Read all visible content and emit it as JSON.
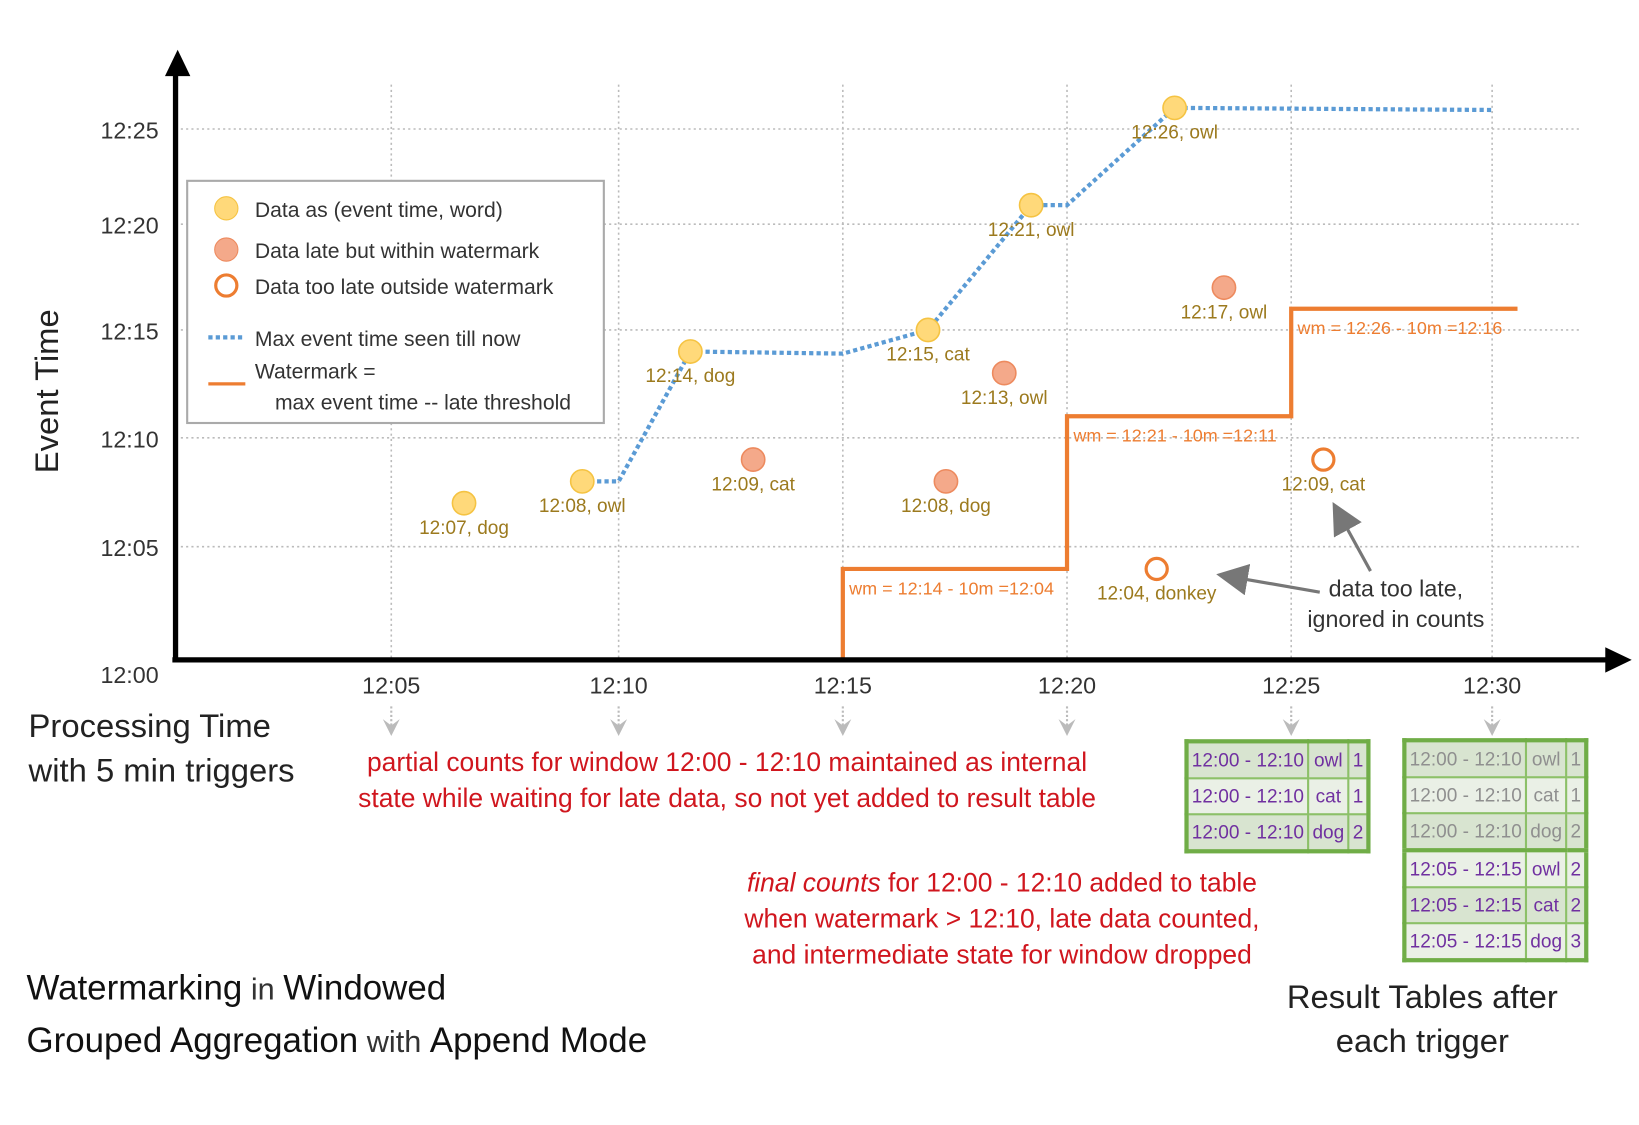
{
  "title": {
    "parts": [
      {
        "text": "Watermarking",
        "strong": true
      },
      {
        "text": " in ",
        "strong": false
      },
      {
        "text": "Windowed",
        "strong": true
      },
      {
        "text": "Grouped Aggregation",
        "strong": true
      },
      {
        "text": " with ",
        "strong": false
      },
      {
        "text": "Append Mode",
        "strong": true
      }
    ]
  },
  "axes": {
    "y_label": "Event Time",
    "x_label_line1": "Processing Time",
    "x_label_line2": "with 5 min triggers",
    "y_ticks": [
      "12:00",
      "12:05",
      "12:10",
      "12:15",
      "12:20",
      "12:25"
    ],
    "x_ticks": [
      "12:05",
      "12:10",
      "12:15",
      "12:20",
      "12:25",
      "12:30"
    ]
  },
  "legend": {
    "on_time": "Data as (event time, word)",
    "late_within": "Data late but within watermark",
    "too_late": "Data too late outside watermark",
    "max_event": "Max event time seen till now",
    "watermark_line1": "Watermark =",
    "watermark_line2": "max event time -- late threshold"
  },
  "colors": {
    "on_time": "#ffd97a",
    "late_within": "#f4a98a",
    "too_late": "#ed7d31",
    "max_event": "#5b9bd5",
    "watermark": "#ed7d31",
    "label": "#9c7a1e",
    "note": "#d0161e",
    "table_border": "#70ad47",
    "table_text": "#7030a0"
  },
  "chart_data": {
    "type": "scatter",
    "points": [
      {
        "proc": "12:06.6",
        "event": "12:07",
        "word": "dog",
        "label": "12:07, dog",
        "kind": "on_time"
      },
      {
        "proc": "12:09.2",
        "event": "12:08",
        "word": "owl",
        "label": "12:08, owl",
        "kind": "on_time"
      },
      {
        "proc": "12:11.6",
        "event": "12:14",
        "word": "dog",
        "label": "12:14, dog",
        "kind": "on_time"
      },
      {
        "proc": "12:13.0",
        "event": "12:09",
        "word": "cat",
        "label": "12:09, cat",
        "kind": "late_within"
      },
      {
        "proc": "12:16.9",
        "event": "12:15",
        "word": "cat",
        "label": "12:15, cat",
        "kind": "on_time"
      },
      {
        "proc": "12:17.3",
        "event": "12:08",
        "word": "dog",
        "label": "12:08, dog",
        "kind": "late_within"
      },
      {
        "proc": "12:18.6",
        "event": "12:13",
        "word": "owl",
        "label": "12:13, owl",
        "kind": "late_within"
      },
      {
        "proc": "12:19.2",
        "event": "12:21",
        "word": "owl",
        "label": "12:21, owl",
        "kind": "on_time"
      },
      {
        "proc": "12:22.0",
        "event": "12:04",
        "word": "donkey",
        "label": "12:04, donkey",
        "kind": "too_late"
      },
      {
        "proc": "12:22.4",
        "event": "12:26",
        "word": "owl",
        "label": "12:26, owl",
        "kind": "on_time"
      },
      {
        "proc": "12:23.5",
        "event": "12:17",
        "word": "owl",
        "label": "12:17, owl",
        "kind": "late_within"
      },
      {
        "proc": "12:25.8",
        "event": "12:09",
        "word": "cat",
        "label": "12:09, cat",
        "kind": "too_late"
      }
    ],
    "watermarks": [
      {
        "label": "wm = 12:14 - 10m =12:04",
        "from": "12:15",
        "to": "12:20",
        "value": "12:04"
      },
      {
        "label": "wm = 12:21 - 10m =12:11",
        "from": "12:20",
        "to": "12:25",
        "value": "12:11"
      },
      {
        "label": "wm = 12:26 - 10m =12:16",
        "from": "12:25",
        "to": "12:30",
        "value": "12:16"
      }
    ]
  },
  "annotations": {
    "too_late_line1": "data too late,",
    "too_late_line2": "ignored in counts",
    "partial_line1": "partial counts for window 12:00 - 12:10 maintained as internal",
    "partial_line2": "state while waiting for late data, so not yet added  to result table",
    "final_em": "final counts",
    "final_line1_rest": " for 12:00 - 12:10 added to table",
    "final_line2": "when watermark > 12:10, late data counted,",
    "final_line3": "and intermediate state for window dropped"
  },
  "result_tables": {
    "caption_line1": "Result Tables after",
    "caption_line2": "each trigger",
    "t1225": [
      [
        "12:00 - 12:10",
        "owl",
        "1"
      ],
      [
        "12:00 - 12:10",
        "cat",
        "1"
      ],
      [
        "12:00 - 12:10",
        "dog",
        "2"
      ]
    ],
    "t1230": [
      [
        "12:00 - 12:10",
        "owl",
        "1"
      ],
      [
        "12:00 - 12:10",
        "cat",
        "1"
      ],
      [
        "12:00 - 12:10",
        "dog",
        "2"
      ],
      [
        "12:05 - 12:15",
        "owl",
        "2"
      ],
      [
        "12:05 - 12:15",
        "cat",
        "2"
      ],
      [
        "12:05 - 12:15",
        "dog",
        "3"
      ]
    ]
  }
}
